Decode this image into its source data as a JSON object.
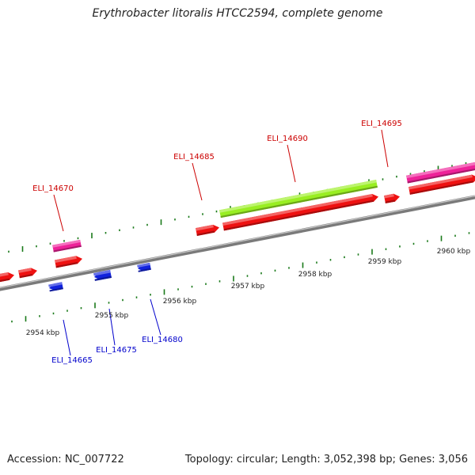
{
  "title": "Erythrobacter litoralis HTCC2594, complete genome",
  "footer": {
    "accession": "Accession: NC_007722",
    "summary": "Topology: circular; Length: 3,052,398 bp; Genes: 3,056"
  },
  "colors": {
    "backbone": "#7a7a7a",
    "tick": "#1a7a1a",
    "label_top": "#cc0000",
    "label_bottom": "#0000cc",
    "cds": "#ee1111",
    "gene": "#ee2299",
    "rna": "#99ee22",
    "reverse": "#1122dd"
  },
  "scale_labels": [
    "2954 kbp",
    "2955 kbp",
    "2956 kbp",
    "2957 kbp",
    "2958 kbp",
    "2959 kbp",
    "2960 kbp"
  ],
  "gene_labels": {
    "top": [
      "ELI_14670",
      "ELI_14685",
      "ELI_14690",
      "ELI_14695"
    ],
    "bottom": [
      "ELI_14665",
      "ELI_14675",
      "ELI_14680"
    ]
  }
}
